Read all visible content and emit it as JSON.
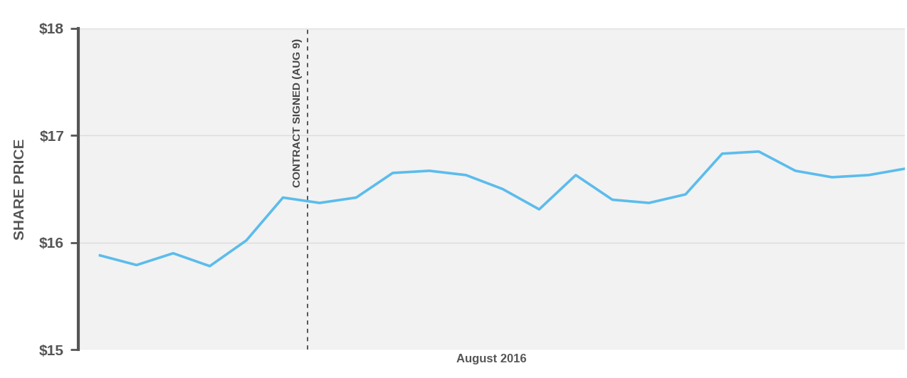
{
  "chart_data": {
    "type": "line",
    "x_label": "August 2016",
    "y_label": "SHARE PRICE",
    "categories": [
      null,
      null,
      null,
      null,
      null,
      null,
      null,
      null,
      null,
      null,
      null,
      null,
      null,
      null,
      null,
      null,
      null,
      null,
      null,
      null,
      null,
      null,
      null
    ],
    "values": [
      15.88,
      15.79,
      15.9,
      15.78,
      16.02,
      16.42,
      16.37,
      16.42,
      16.65,
      16.67,
      16.63,
      16.5,
      16.31,
      16.63,
      16.4,
      16.37,
      16.45,
      16.83,
      16.85,
      16.67,
      16.61,
      16.63,
      16.69
    ],
    "color": "#5bbcec",
    "ylim": [
      15,
      18
    ],
    "yticks": [
      {
        "value": 15,
        "label": "$15"
      },
      {
        "value": 16,
        "label": "$16"
      },
      {
        "value": 17,
        "label": "$17"
      },
      {
        "value": 18,
        "label": "$18"
      }
    ],
    "grid": true,
    "tick_labels": "y",
    "line_style": "solid",
    "annotations": [
      {
        "text": "CONTRACT SIGNED (AUG 9)",
        "x": 5.67
      }
    ]
  }
}
